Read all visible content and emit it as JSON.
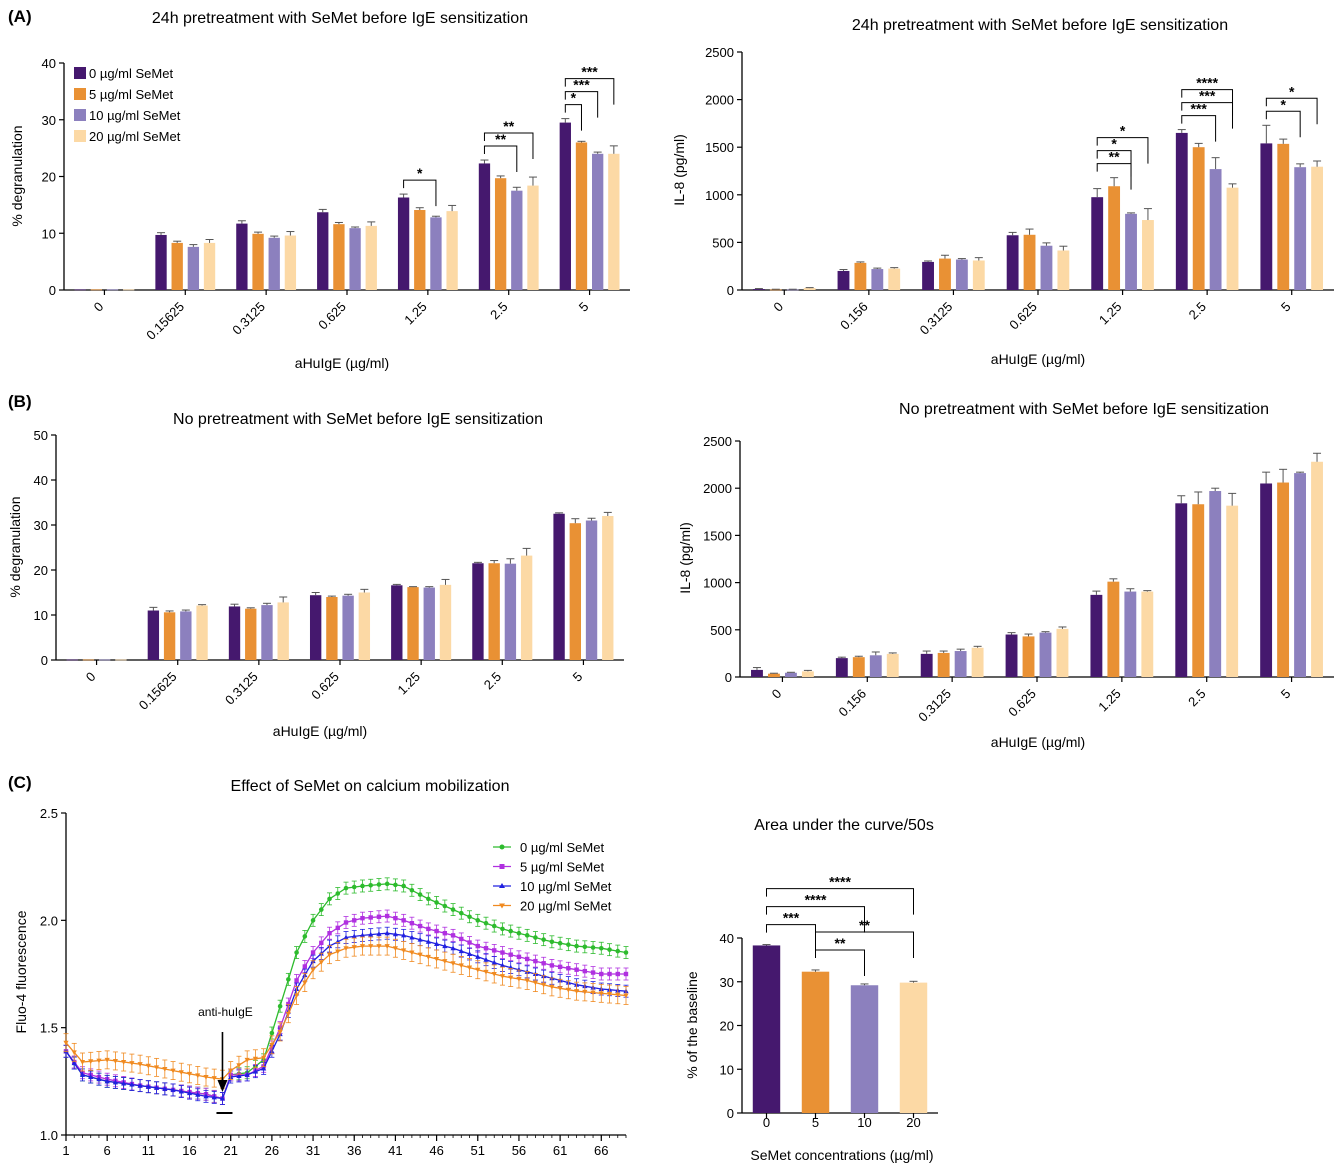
{
  "panel_labels": [
    "(A)",
    "(B)",
    "(C)"
  ],
  "colors": {
    "c0": "#45186e",
    "c5": "#e99134",
    "c10": "#8c80be",
    "c20": "#fcd9a5",
    "line0": "#2dbb2d",
    "line5": "#b030e0",
    "line10": "#2020e0",
    "line20": "#f08a20"
  },
  "bar_legend": [
    "0 µg/ml SeMet",
    "5 µg/ml SeMet",
    "10 µg/ml SeMet",
    "20 µg/ml SeMet"
  ],
  "line_legend": [
    "0 µg/ml SeMet",
    "5 µg/ml SeMet",
    "10 µg/ml SeMet",
    "20 µg/ml SeMet"
  ],
  "annotation": "anti-huIgE",
  "chart_data": [
    {
      "id": "A1",
      "type": "bar",
      "title": "24h pretreatment with SeMet before IgE sensitization",
      "xlabel": "aHuIgE (µg/ml)",
      "ylabel": "% degranulation",
      "ylim": [
        0,
        40
      ],
      "yticks": [
        0,
        10,
        20,
        30,
        40
      ],
      "categories": [
        "0",
        "0.15625",
        "0.3125",
        "0.625",
        "1.25",
        "2.5",
        "5"
      ],
      "legend": "top-left",
      "series": [
        {
          "name": "0 µg/ml SeMet",
          "values": [
            0.1,
            9.7,
            11.7,
            13.7,
            16.3,
            22.3,
            29.5
          ],
          "err": [
            0,
            0.4,
            0.5,
            0.5,
            0.6,
            0.6,
            0.7
          ]
        },
        {
          "name": "5 µg/ml SeMet",
          "values": [
            0.1,
            8.3,
            9.9,
            11.6,
            14.1,
            19.7,
            26.0
          ],
          "err": [
            0,
            0.3,
            0.3,
            0.3,
            0.4,
            0.4,
            0.2
          ]
        },
        {
          "name": "10 µg/ml SeMet",
          "values": [
            0.1,
            7.6,
            9.2,
            10.9,
            12.8,
            17.5,
            24.0
          ],
          "err": [
            0,
            0.4,
            0.3,
            0.2,
            0.2,
            0.6,
            0.3
          ]
        },
        {
          "name": "20 µg/ml SeMet",
          "values": [
            0.1,
            8.3,
            9.6,
            11.3,
            13.9,
            18.4,
            24.0
          ],
          "err": [
            0,
            0.6,
            0.7,
            0.7,
            1.0,
            1.5,
            1.4
          ]
        }
      ],
      "significance": [
        {
          "label": "*",
          "category": 4,
          "from": 0,
          "to": 2
        },
        {
          "label": "**",
          "category": 5,
          "from": 0,
          "to": 2
        },
        {
          "label": "**",
          "category": 5,
          "from": 0,
          "to": 3
        },
        {
          "label": "*",
          "category": 6,
          "from": 0,
          "to": 1
        },
        {
          "label": "***",
          "category": 6,
          "from": 0,
          "to": 2
        },
        {
          "label": "***",
          "category": 6,
          "from": 0,
          "to": 3
        }
      ]
    },
    {
      "id": "A2",
      "type": "bar",
      "title": "24h pretreatment with SeMet before IgE sensitization",
      "xlabel": "aHuIgE (µg/ml)",
      "ylabel": "IL-8 (pg/ml)",
      "ylim": [
        0,
        2500
      ],
      "yticks": [
        0,
        500,
        1000,
        1500,
        2000,
        2500
      ],
      "categories": [
        "0",
        "0.156",
        "0.3125",
        "0.625",
        "1.25",
        "2.5",
        "5"
      ],
      "series": [
        {
          "name": "0 µg/ml SeMet",
          "values": [
            10,
            200,
            295,
            575,
            975,
            1650,
            1540
          ],
          "err": [
            5,
            15,
            10,
            30,
            90,
            35,
            190
          ]
        },
        {
          "name": "5 µg/ml SeMet",
          "values": [
            5,
            285,
            330,
            580,
            1090,
            1500,
            1535
          ],
          "err": [
            3,
            10,
            35,
            60,
            90,
            40,
            50
          ]
        },
        {
          "name": "10 µg/ml SeMet",
          "values": [
            5,
            220,
            320,
            465,
            800,
            1270,
            1290
          ],
          "err": [
            3,
            10,
            10,
            30,
            10,
            120,
            35
          ]
        },
        {
          "name": "20 µg/ml SeMet",
          "values": [
            20,
            225,
            310,
            415,
            735,
            1075,
            1295
          ],
          "err": [
            5,
            10,
            30,
            45,
            120,
            40,
            60
          ]
        }
      ],
      "significance": [
        {
          "label": "**",
          "category": 4,
          "from": 0,
          "to": 2
        },
        {
          "label": "*",
          "category": 4,
          "from": 0,
          "to": 2
        },
        {
          "label": "*",
          "category": 4,
          "from": 0,
          "to": 3
        },
        {
          "label": "***",
          "category": 5,
          "from": 0,
          "to": 2
        },
        {
          "label": "***",
          "category": 5,
          "from": 0,
          "to": 3
        },
        {
          "label": "****",
          "category": 5,
          "from": 0,
          "to": 3
        },
        {
          "label": "*",
          "category": 6,
          "from": 0,
          "to": 2
        },
        {
          "label": "*",
          "category": 6,
          "from": 0,
          "to": 3
        }
      ]
    },
    {
      "id": "B1",
      "type": "bar",
      "title": "No pretreatment with SeMet before IgE sensitization",
      "xlabel": "aHuIgE (µg/ml)",
      "ylabel": "% degranulation",
      "ylim": [
        0,
        50
      ],
      "yticks": [
        0,
        10,
        20,
        30,
        40,
        50
      ],
      "categories": [
        "0",
        "0.15625",
        "0.3125",
        "0.625",
        "1.25",
        "2.5",
        "5"
      ],
      "series": [
        {
          "name": "0 µg/ml SeMet",
          "values": [
            0.1,
            11.0,
            11.9,
            14.4,
            16.6,
            21.5,
            32.5
          ],
          "err": [
            0,
            0.7,
            0.5,
            0.6,
            0.2,
            0.2,
            0.2
          ]
        },
        {
          "name": "5 µg/ml SeMet",
          "values": [
            0.1,
            10.6,
            11.4,
            14.0,
            16.2,
            21.5,
            30.4
          ],
          "err": [
            0,
            0.3,
            0.2,
            0.2,
            0.1,
            0.6,
            1.0
          ]
        },
        {
          "name": "10 µg/ml SeMet",
          "values": [
            0.1,
            10.8,
            12.2,
            14.3,
            16.1,
            21.4,
            31.0
          ],
          "err": [
            0,
            0.3,
            0.4,
            0.3,
            0.2,
            1.1,
            0.5
          ]
        },
        {
          "name": "20 µg/ml SeMet",
          "values": [
            0.1,
            12.1,
            12.8,
            15.0,
            16.7,
            23.2,
            32.0
          ],
          "err": [
            0,
            0.2,
            1.2,
            0.7,
            1.2,
            1.6,
            0.8
          ]
        }
      ]
    },
    {
      "id": "B2",
      "type": "bar",
      "title": "No pretreatment with SeMet before IgE sensitization",
      "xlabel": "aHuIgE (µg/ml)",
      "ylabel": "IL-8 (pg/ml)",
      "ylim": [
        0,
        2500
      ],
      "yticks": [
        0,
        500,
        1000,
        1500,
        2000,
        2500
      ],
      "categories": [
        "0",
        "0.156",
        "0.3125",
        "0.625",
        "1.25",
        "2.5",
        "5"
      ],
      "series": [
        {
          "name": "0 µg/ml SeMet",
          "values": [
            75,
            200,
            245,
            450,
            870,
            1840,
            2050
          ],
          "err": [
            25,
            10,
            30,
            20,
            40,
            80,
            120
          ]
        },
        {
          "name": "5 µg/ml SeMet",
          "values": [
            35,
            210,
            255,
            430,
            1010,
            1830,
            2060
          ],
          "err": [
            5,
            10,
            20,
            25,
            30,
            130,
            140
          ]
        },
        {
          "name": "10 µg/ml SeMet",
          "values": [
            45,
            230,
            275,
            470,
            905,
            1970,
            2160
          ],
          "err": [
            5,
            35,
            20,
            10,
            30,
            30,
            10
          ]
        },
        {
          "name": "20 µg/ml SeMet",
          "values": [
            60,
            245,
            310,
            510,
            905,
            1815,
            2280
          ],
          "err": [
            10,
            10,
            15,
            20,
            10,
            130,
            90
          ]
        }
      ]
    },
    {
      "id": "C1",
      "type": "line",
      "title": "Effect of SeMet on calcium mobilization",
      "xlabel": "",
      "ylabel": "Fluo-4 fluorescence",
      "xlim": [
        1,
        69
      ],
      "ylim": [
        1.0,
        2.5
      ],
      "xticks": [
        1,
        6,
        11,
        16,
        21,
        26,
        31,
        36,
        41,
        46,
        51,
        56,
        61,
        66
      ],
      "yticks": [
        "1.0",
        "1.5",
        "2.0",
        "2.5"
      ],
      "legend": "top-right",
      "series": [
        {
          "name": "0 µg/ml SeMet",
          "points": [
            [
              1,
              1.39
            ],
            [
              3,
              1.28
            ],
            [
              6,
              1.25
            ],
            [
              10,
              1.23
            ],
            [
              14,
              1.21
            ],
            [
              18,
              1.19
            ],
            [
              20,
              1.17
            ],
            [
              21,
              1.28
            ],
            [
              23,
              1.29
            ],
            [
              25,
              1.35
            ],
            [
              27,
              1.6
            ],
            [
              29,
              1.85
            ],
            [
              31,
              2.0
            ],
            [
              33,
              2.1
            ],
            [
              35,
              2.15
            ],
            [
              37,
              2.16
            ],
            [
              40,
              2.17
            ],
            [
              42,
              2.16
            ],
            [
              45,
              2.1
            ],
            [
              48,
              2.05
            ],
            [
              51,
              2.0
            ],
            [
              54,
              1.96
            ],
            [
              57,
              1.93
            ],
            [
              60,
              1.9
            ],
            [
              63,
              1.88
            ],
            [
              66,
              1.87
            ],
            [
              69,
              1.85
            ]
          ]
        },
        {
          "name": "5 µg/ml SeMet",
          "points": [
            [
              1,
              1.39
            ],
            [
              3,
              1.29
            ],
            [
              6,
              1.26
            ],
            [
              10,
              1.23
            ],
            [
              14,
              1.21
            ],
            [
              18,
              1.19
            ],
            [
              20,
              1.17
            ],
            [
              21,
              1.28
            ],
            [
              23,
              1.28
            ],
            [
              25,
              1.32
            ],
            [
              27,
              1.5
            ],
            [
              29,
              1.72
            ],
            [
              31,
              1.85
            ],
            [
              33,
              1.94
            ],
            [
              35,
              1.99
            ],
            [
              37,
              2.01
            ],
            [
              40,
              2.02
            ],
            [
              42,
              2.0
            ],
            [
              45,
              1.96
            ],
            [
              48,
              1.93
            ],
            [
              51,
              1.88
            ],
            [
              54,
              1.85
            ],
            [
              57,
              1.82
            ],
            [
              60,
              1.79
            ],
            [
              63,
              1.77
            ],
            [
              66,
              1.75
            ],
            [
              69,
              1.75
            ]
          ]
        },
        {
          "name": "10 µg/ml SeMet",
          "points": [
            [
              1,
              1.39
            ],
            [
              3,
              1.28
            ],
            [
              6,
              1.25
            ],
            [
              10,
              1.23
            ],
            [
              14,
              1.21
            ],
            [
              18,
              1.18
            ],
            [
              20,
              1.17
            ],
            [
              21,
              1.27
            ],
            [
              23,
              1.28
            ],
            [
              25,
              1.31
            ],
            [
              27,
              1.47
            ],
            [
              29,
              1.68
            ],
            [
              31,
              1.81
            ],
            [
              33,
              1.88
            ],
            [
              35,
              1.92
            ],
            [
              37,
              1.93
            ],
            [
              40,
              1.94
            ],
            [
              42,
              1.93
            ],
            [
              45,
              1.9
            ],
            [
              48,
              1.87
            ],
            [
              51,
              1.83
            ],
            [
              54,
              1.79
            ],
            [
              57,
              1.76
            ],
            [
              60,
              1.73
            ],
            [
              63,
              1.7
            ],
            [
              66,
              1.68
            ],
            [
              69,
              1.67
            ]
          ]
        },
        {
          "name": "20 µg/ml SeMet",
          "points": [
            [
              1,
              1.43
            ],
            [
              3,
              1.34
            ],
            [
              6,
              1.35
            ],
            [
              10,
              1.33
            ],
            [
              14,
              1.3
            ],
            [
              18,
              1.27
            ],
            [
              20,
              1.26
            ],
            [
              21,
              1.3
            ],
            [
              23,
              1.35
            ],
            [
              25,
              1.36
            ],
            [
              27,
              1.48
            ],
            [
              29,
              1.65
            ],
            [
              31,
              1.77
            ],
            [
              33,
              1.84
            ],
            [
              35,
              1.87
            ],
            [
              37,
              1.88
            ],
            [
              40,
              1.88
            ],
            [
              42,
              1.86
            ],
            [
              45,
              1.83
            ],
            [
              48,
              1.8
            ],
            [
              51,
              1.77
            ],
            [
              54,
              1.74
            ],
            [
              57,
              1.72
            ],
            [
              60,
              1.69
            ],
            [
              63,
              1.67
            ],
            [
              66,
              1.66
            ],
            [
              69,
              1.65
            ]
          ]
        }
      ]
    },
    {
      "id": "C2",
      "type": "bar",
      "title": "Area under the curve/50s",
      "xlabel": "SeMet concentrations (µg/ml)",
      "ylabel": "% of the baseline",
      "ylim": [
        0,
        40
      ],
      "yticks": [
        0,
        10,
        20,
        30,
        40
      ],
      "categories": [
        "0",
        "5",
        "10",
        "20"
      ],
      "values": [
        38.3,
        32.3,
        29.2,
        29.8
      ],
      "err": [
        0.2,
        0.4,
        0.3,
        0.3
      ],
      "significance": [
        {
          "label": "***",
          "from": 0,
          "to": 1
        },
        {
          "label": "****",
          "from": 0,
          "to": 2
        },
        {
          "label": "****",
          "from": 0,
          "to": 3
        },
        {
          "label": "**",
          "from": 1,
          "to": 2
        },
        {
          "label": "**",
          "from": 1,
          "to": 3
        }
      ]
    }
  ]
}
